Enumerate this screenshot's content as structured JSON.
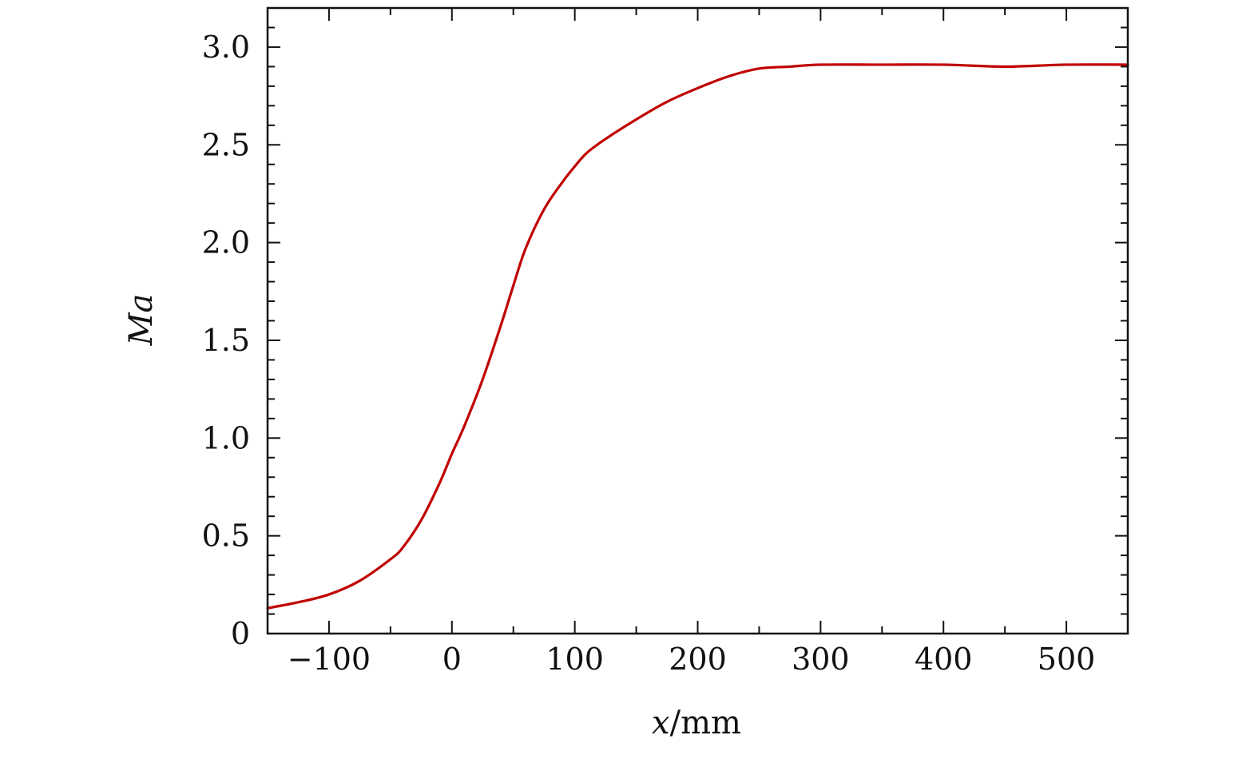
{
  "chart_data": {
    "type": "line",
    "title": "",
    "xlabel": {
      "var": "x",
      "unit": "/mm"
    },
    "ylabel": "Ma",
    "xlim": [
      -150,
      550
    ],
    "ylim": [
      0,
      3.2
    ],
    "grid": false,
    "legend": "none",
    "x_ticks": [
      {
        "value": -100,
        "label": "−100"
      },
      {
        "value": 0,
        "label": "0"
      },
      {
        "value": 100,
        "label": "100"
      },
      {
        "value": 200,
        "label": "200"
      },
      {
        "value": 300,
        "label": "300"
      },
      {
        "value": 400,
        "label": "400"
      },
      {
        "value": 500,
        "label": "500"
      }
    ],
    "y_ticks": [
      {
        "value": 0,
        "label": "0"
      },
      {
        "value": 0.5,
        "label": "0.5"
      },
      {
        "value": 1.0,
        "label": "1.0"
      },
      {
        "value": 1.5,
        "label": "1.5"
      },
      {
        "value": 2.0,
        "label": "2.0"
      },
      {
        "value": 2.5,
        "label": "2.5"
      },
      {
        "value": 3.0,
        "label": "3.0"
      }
    ],
    "x_minor_step": 50,
    "y_minor_step": 0.1,
    "series": [
      {
        "color": "#c00000",
        "x": [
          -150,
          -125,
          -100,
          -75,
          -50,
          -40,
          -25,
          -10,
          0,
          10,
          25,
          40,
          50,
          60,
          75,
          90,
          100,
          110,
          125,
          150,
          175,
          200,
          225,
          250,
          275,
          300,
          350,
          400,
          450,
          500,
          550
        ],
        "y": [
          0.13,
          0.16,
          0.2,
          0.27,
          0.38,
          0.44,
          0.58,
          0.77,
          0.92,
          1.06,
          1.3,
          1.58,
          1.78,
          1.97,
          2.17,
          2.31,
          2.39,
          2.46,
          2.53,
          2.63,
          2.72,
          2.79,
          2.85,
          2.89,
          2.9,
          2.91,
          2.91,
          2.91,
          2.9,
          2.91,
          2.91
        ]
      }
    ]
  }
}
